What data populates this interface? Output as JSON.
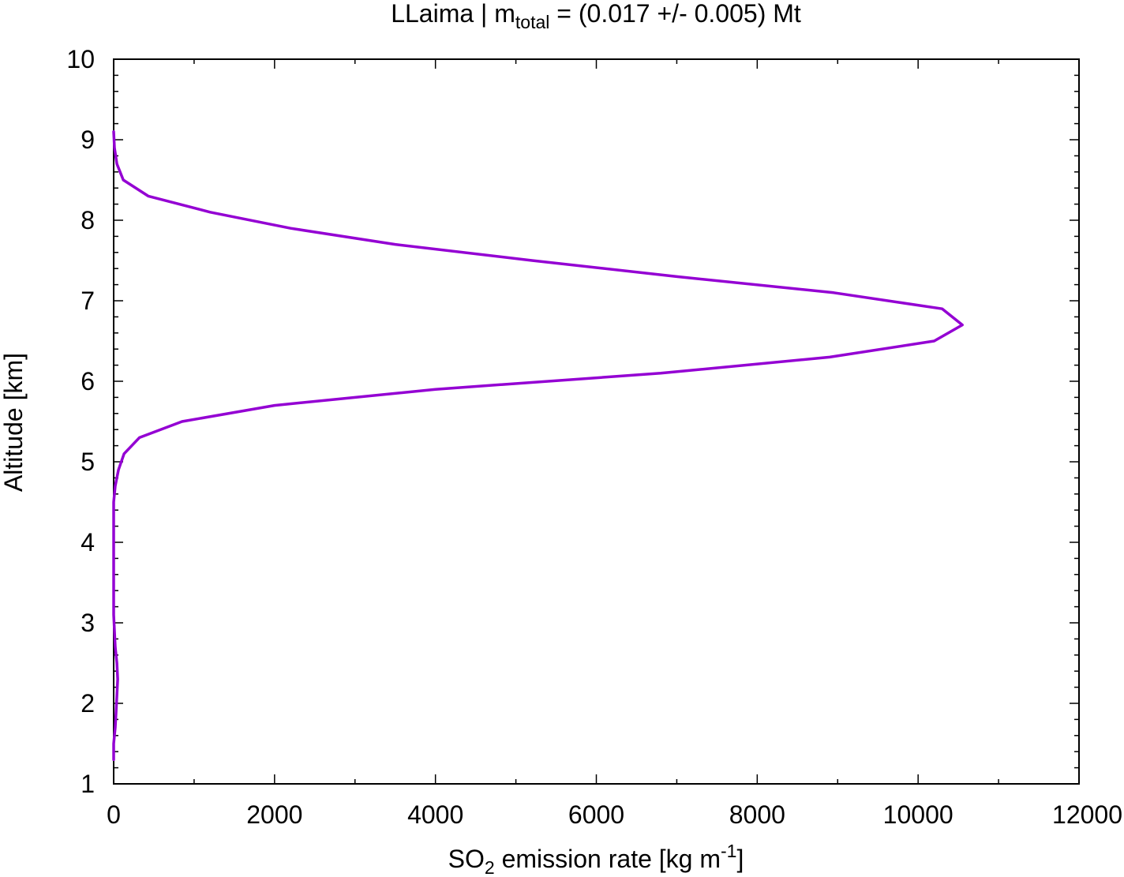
{
  "chart_data": {
    "type": "line",
    "title": {
      "prefix": "LLaima | m",
      "subscript": "total",
      "suffix": " = (0.017 +/- 0.005) Mt"
    },
    "xlabel": {
      "prefix": "SO",
      "subscript": "2",
      "middle": " emission rate [kg m",
      "superscript": "-1",
      "suffix": "]"
    },
    "ylabel": "Altitude [km]",
    "xlim": [
      0,
      12000
    ],
    "ylim": [
      1,
      10
    ],
    "x_ticks": [
      0,
      2000,
      4000,
      6000,
      8000,
      10000,
      12000
    ],
    "x_tick_labels": [
      "0",
      "2000",
      "4000",
      "6000",
      "8000",
      "10000",
      "12000"
    ],
    "x_minor_step": 1000,
    "y_ticks": [
      1,
      2,
      3,
      4,
      5,
      6,
      7,
      8,
      9,
      10
    ],
    "y_tick_labels": [
      "1",
      "2",
      "3",
      "4",
      "5",
      "6",
      "7",
      "8",
      "9",
      "10"
    ],
    "y_minor_step": 0.2,
    "grid": false,
    "legend": "none",
    "series": [
      {
        "color": "#9400d3",
        "points": [
          {
            "x": 0,
            "y": 1.3
          },
          {
            "x": 0,
            "y": 1.5
          },
          {
            "x": 20,
            "y": 1.7
          },
          {
            "x": 30,
            "y": 1.9
          },
          {
            "x": 40,
            "y": 2.1
          },
          {
            "x": 50,
            "y": 2.3
          },
          {
            "x": 40,
            "y": 2.5
          },
          {
            "x": 20,
            "y": 2.7
          },
          {
            "x": 10,
            "y": 2.9
          },
          {
            "x": 0,
            "y": 3.1
          },
          {
            "x": 0,
            "y": 3.3
          },
          {
            "x": 0,
            "y": 3.5
          },
          {
            "x": 0,
            "y": 3.7
          },
          {
            "x": 0,
            "y": 3.9
          },
          {
            "x": 0,
            "y": 4.1
          },
          {
            "x": 0,
            "y": 4.3
          },
          {
            "x": 0,
            "y": 4.5
          },
          {
            "x": 20,
            "y": 4.7
          },
          {
            "x": 60,
            "y": 4.9
          },
          {
            "x": 130,
            "y": 5.1
          },
          {
            "x": 320,
            "y": 5.3
          },
          {
            "x": 850,
            "y": 5.5
          },
          {
            "x": 2000,
            "y": 5.7
          },
          {
            "x": 4000,
            "y": 5.9
          },
          {
            "x": 6800,
            "y": 6.1
          },
          {
            "x": 8900,
            "y": 6.3
          },
          {
            "x": 10200,
            "y": 6.5
          },
          {
            "x": 10550,
            "y": 6.7
          },
          {
            "x": 10300,
            "y": 6.9
          },
          {
            "x": 8950,
            "y": 7.1
          },
          {
            "x": 7000,
            "y": 7.3
          },
          {
            "x": 5200,
            "y": 7.5
          },
          {
            "x": 3500,
            "y": 7.7
          },
          {
            "x": 2200,
            "y": 7.9
          },
          {
            "x": 1200,
            "y": 8.1
          },
          {
            "x": 430,
            "y": 8.3
          },
          {
            "x": 120,
            "y": 8.5
          },
          {
            "x": 40,
            "y": 8.7
          },
          {
            "x": 10,
            "y": 8.9
          },
          {
            "x": 0,
            "y": 9.1
          }
        ]
      }
    ]
  }
}
